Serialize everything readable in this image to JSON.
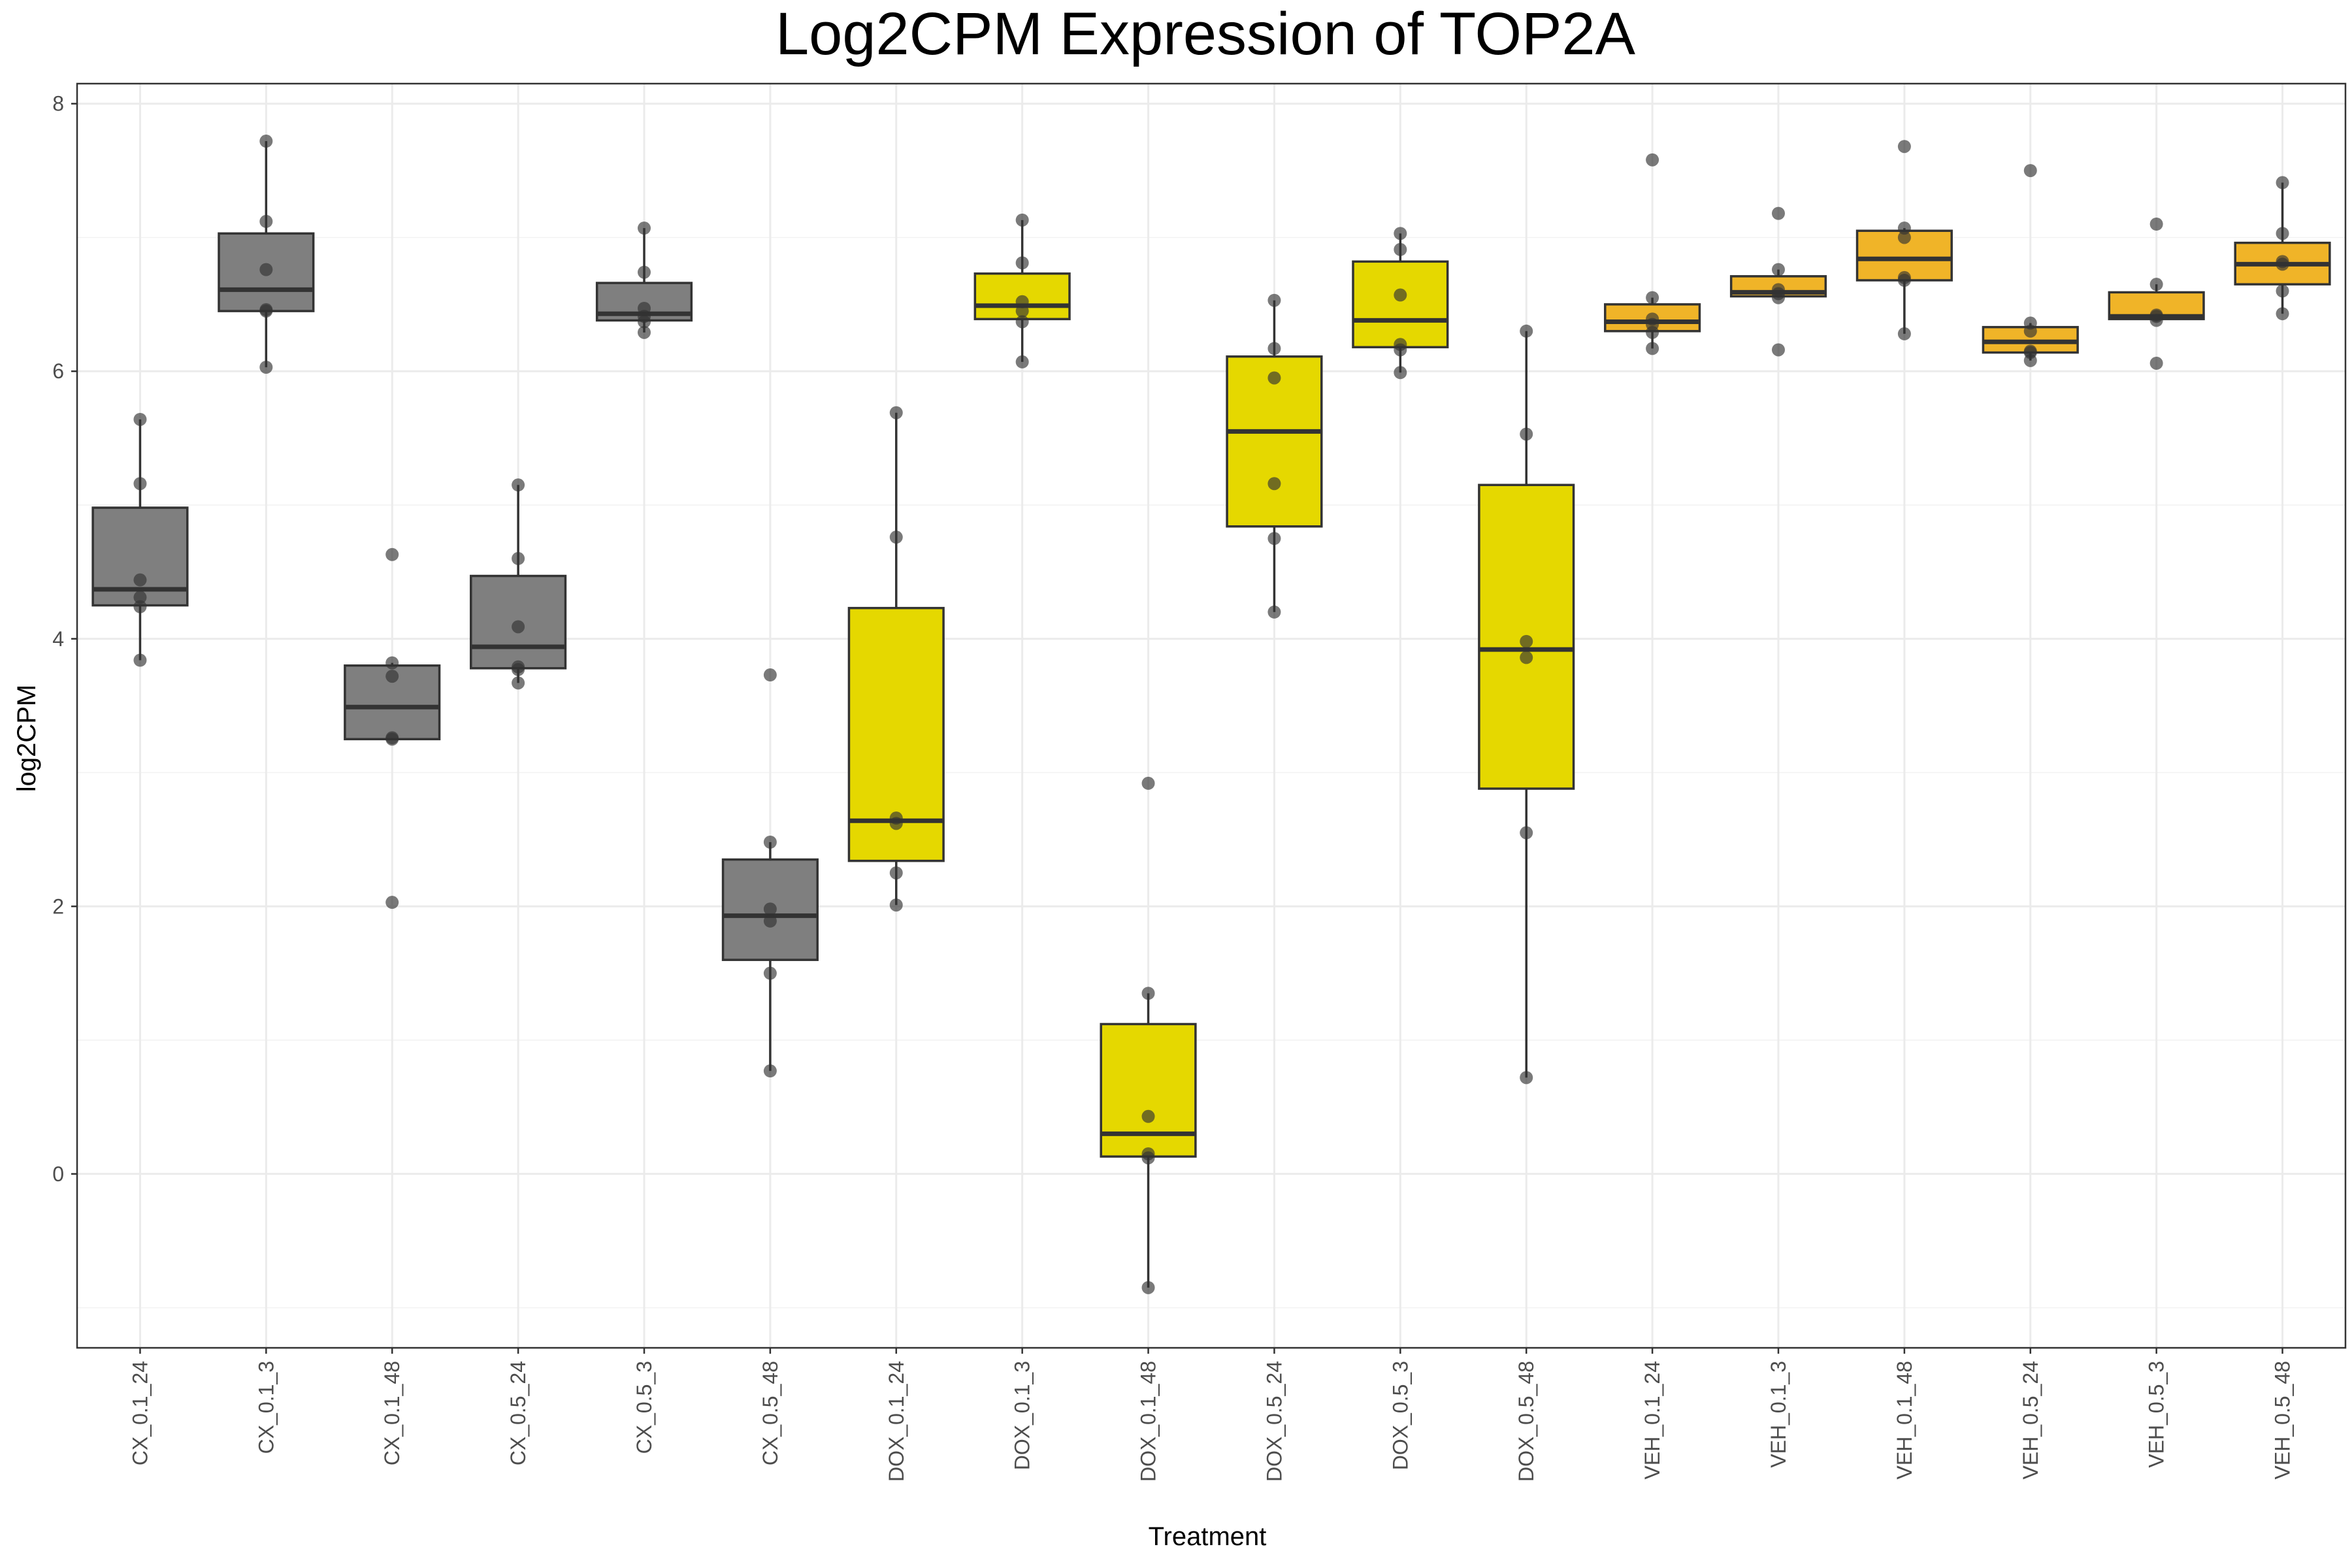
{
  "chart_data": {
    "type": "boxplot",
    "title": "Log2CPM Expression of TOP2A",
    "xlabel": "Treatment",
    "ylabel": "log2CPM",
    "ylim": [
      -1.3,
      8.15
    ],
    "yticks": [
      0,
      2,
      4,
      6,
      8
    ],
    "grid": true,
    "legend": "none",
    "fill_colors": {
      "CX": "#7f7f7f",
      "DOX": "#e5d800",
      "VEH": "#f0b428"
    },
    "point_color": "#333333",
    "categories": [
      "CX_0.1_24",
      "CX_0.1_3",
      "CX_0.1_48",
      "CX_0.5_24",
      "CX_0.5_3",
      "CX_0.5_48",
      "DOX_0.1_24",
      "DOX_0.1_3",
      "DOX_0.1_48",
      "DOX_0.5_24",
      "DOX_0.5_3",
      "DOX_0.5_48",
      "VEH_0.1_24",
      "VEH_0.1_3",
      "VEH_0.1_48",
      "VEH_0.5_24",
      "VEH_0.5_3",
      "VEH_0.5_48"
    ],
    "groups": [
      {
        "category": "CX_0.1_24",
        "group": "CX",
        "min": 3.84,
        "q1": 4.25,
        "median": 4.37,
        "q3": 4.98,
        "max": 5.64,
        "points": [
          5.64,
          5.16,
          4.44,
          4.31,
          4.24,
          3.84
        ]
      },
      {
        "category": "CX_0.1_3",
        "group": "CX",
        "min": 6.03,
        "q1": 6.45,
        "median": 6.61,
        "q3": 7.03,
        "max": 7.72,
        "points": [
          7.72,
          7.12,
          6.76,
          6.46,
          6.45,
          6.03
        ]
      },
      {
        "category": "CX_0.1_48",
        "group": "CX",
        "min": 3.25,
        "q1": 3.25,
        "median": 3.49,
        "q3": 3.8,
        "max": 3.82,
        "points": [
          4.63,
          3.82,
          3.72,
          3.26,
          3.25,
          2.03
        ]
      },
      {
        "category": "CX_0.5_24",
        "group": "CX",
        "min": 3.67,
        "q1": 3.78,
        "median": 3.94,
        "q3": 4.47,
        "max": 5.15,
        "points": [
          5.15,
          4.6,
          4.09,
          3.79,
          3.77,
          3.67
        ]
      },
      {
        "category": "CX_0.5_3",
        "group": "CX",
        "min": 6.29,
        "q1": 6.38,
        "median": 6.43,
        "q3": 6.66,
        "max": 7.07,
        "points": [
          7.07,
          6.74,
          6.47,
          6.41,
          6.37,
          6.29
        ]
      },
      {
        "category": "CX_0.5_48",
        "group": "CX",
        "min": 0.77,
        "q1": 1.6,
        "median": 1.93,
        "q3": 2.35,
        "max": 2.48,
        "points": [
          3.73,
          2.48,
          1.98,
          1.89,
          1.5,
          0.77
        ]
      },
      {
        "category": "DOX_0.1_24",
        "group": "DOX",
        "min": 2.01,
        "q1": 2.34,
        "median": 2.64,
        "q3": 4.23,
        "max": 5.69,
        "points": [
          5.69,
          4.76,
          2.66,
          2.62,
          2.25,
          2.01
        ]
      },
      {
        "category": "DOX_0.1_3",
        "group": "DOX",
        "min": 6.07,
        "q1": 6.39,
        "median": 6.49,
        "q3": 6.73,
        "max": 7.13,
        "points": [
          7.13,
          6.81,
          6.52,
          6.45,
          6.37,
          6.07
        ]
      },
      {
        "category": "DOX_0.1_48",
        "group": "DOX",
        "min": -0.85,
        "q1": 0.13,
        "median": 0.3,
        "q3": 1.12,
        "max": 1.35,
        "points": [
          2.92,
          1.35,
          0.43,
          0.15,
          0.12,
          -0.85
        ]
      },
      {
        "category": "DOX_0.5_24",
        "group": "DOX",
        "min": 4.2,
        "q1": 4.84,
        "median": 5.55,
        "q3": 6.11,
        "max": 6.53,
        "points": [
          6.53,
          6.17,
          5.95,
          5.16,
          4.75,
          4.2
        ]
      },
      {
        "category": "DOX_0.5_3",
        "group": "DOX",
        "min": 5.99,
        "q1": 6.18,
        "median": 6.38,
        "q3": 6.82,
        "max": 7.03,
        "points": [
          7.03,
          6.91,
          6.57,
          6.2,
          6.16,
          5.99
        ]
      },
      {
        "category": "DOX_0.5_48",
        "group": "DOX",
        "min": 0.72,
        "q1": 2.88,
        "median": 3.92,
        "q3": 5.15,
        "max": 6.3,
        "points": [
          6.3,
          5.53,
          3.98,
          3.86,
          2.55,
          0.72
        ]
      },
      {
        "category": "VEH_0.1_24",
        "group": "VEH",
        "min": 6.17,
        "q1": 6.3,
        "median": 6.37,
        "q3": 6.5,
        "max": 6.55,
        "points": [
          7.58,
          6.55,
          6.39,
          6.35,
          6.29,
          6.17
        ]
      },
      {
        "category": "VEH_0.1_3",
        "group": "VEH",
        "min": 6.55,
        "q1": 6.56,
        "median": 6.59,
        "q3": 6.71,
        "max": 6.76,
        "points": [
          7.18,
          6.76,
          6.61,
          6.58,
          6.55,
          6.16
        ]
      },
      {
        "category": "VEH_0.1_48",
        "group": "VEH",
        "min": 6.28,
        "q1": 6.68,
        "median": 6.84,
        "q3": 7.05,
        "max": 7.07,
        "points": [
          7.68,
          7.07,
          7.0,
          6.7,
          6.68,
          6.28
        ]
      },
      {
        "category": "VEH_0.5_24",
        "group": "VEH",
        "min": 6.08,
        "q1": 6.14,
        "median": 6.22,
        "q3": 6.33,
        "max": 6.36,
        "points": [
          7.5,
          6.36,
          6.3,
          6.15,
          6.14,
          6.08
        ]
      },
      {
        "category": "VEH_0.5_3",
        "group": "VEH",
        "min": 6.38,
        "q1": 6.39,
        "median": 6.41,
        "q3": 6.59,
        "max": 6.65,
        "points": [
          7.1,
          6.65,
          6.42,
          6.41,
          6.38,
          6.06
        ]
      },
      {
        "category": "VEH_0.5_48",
        "group": "VEH",
        "min": 6.43,
        "q1": 6.65,
        "median": 6.8,
        "q3": 6.96,
        "max": 7.41,
        "points": [
          7.41,
          7.03,
          6.82,
          6.8,
          6.6,
          6.43
        ]
      }
    ]
  }
}
